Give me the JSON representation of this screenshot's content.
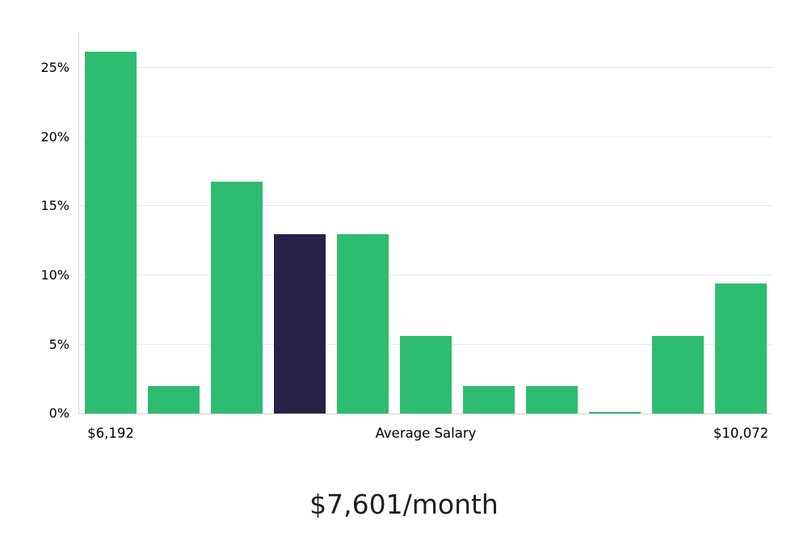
{
  "chart_data": {
    "type": "bar",
    "title": "$7,601/month",
    "values": [
      26.2,
      2.0,
      16.8,
      13.0,
      13.0,
      5.6,
      2.0,
      2.0,
      0.12,
      5.6,
      9.4
    ],
    "highlight_index": 3,
    "ylim": [
      0,
      27.6
    ],
    "y_ticks": [
      0,
      5,
      10,
      15,
      20,
      25
    ],
    "y_tick_labels": [
      "0%",
      "5%",
      "10%",
      "15%",
      "20%",
      "25%"
    ],
    "x_labels": [
      {
        "text": "$6,192",
        "bar_index": 0
      },
      {
        "text": "Average Salary",
        "bar_index": "center"
      },
      {
        "text": "$10,072",
        "bar_index": 10
      }
    ],
    "legend": null,
    "grid": "horizontal-only",
    "colors": {
      "bar": "#2ebd70",
      "highlight": "#262347",
      "grid": "#e9e9e9",
      "axis": "#d0d0d0",
      "text": "#000000",
      "title_text": "#1d1d24",
      "background": "#ffffff"
    }
  }
}
